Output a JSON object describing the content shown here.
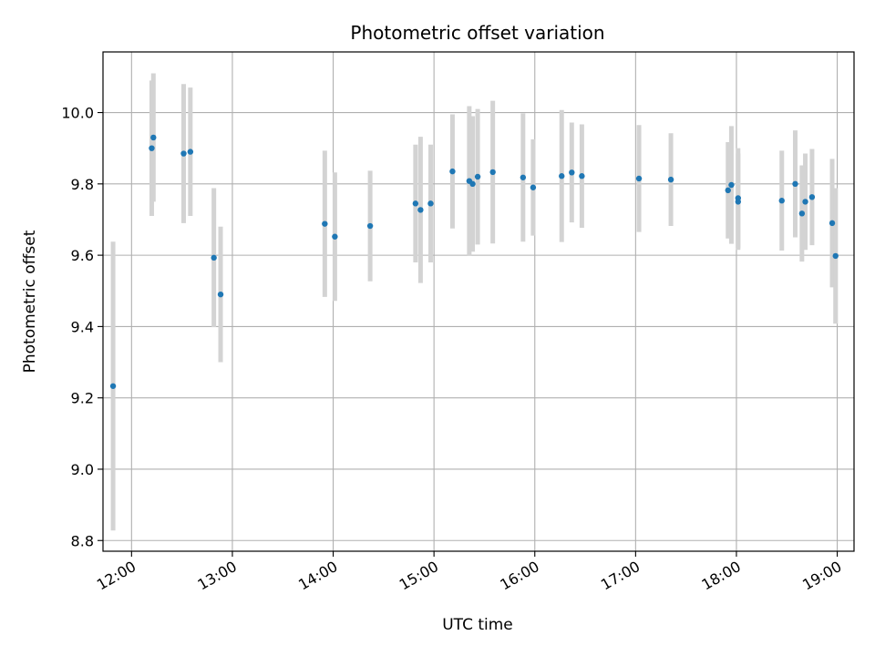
{
  "chart_data": {
    "type": "scatter",
    "title": "Photometric offset variation",
    "xlabel": "UTC time",
    "ylabel": "Photometric offset",
    "xlim": [
      "11:43",
      "19:10"
    ],
    "ylim": [
      8.77,
      10.17
    ],
    "grid": true,
    "x_ticks": [
      "12:00",
      "13:00",
      "14:00",
      "15:00",
      "16:00",
      "17:00",
      "18:00",
      "19:00"
    ],
    "y_ticks": [
      "8.8",
      "9.0",
      "9.2",
      "9.4",
      "9.6",
      "9.8",
      "10.0"
    ],
    "colors": {
      "point": "#1f77b4",
      "errorbar": "#d3d3d3",
      "grid": "#b0b0b0"
    },
    "series": [
      {
        "points": [
          {
            "x": "11:49",
            "y": 9.233,
            "err": 0.405
          },
          {
            "x": "12:12",
            "y": 9.9,
            "err": 0.19
          },
          {
            "x": "12:13",
            "y": 9.93,
            "err": 0.18
          },
          {
            "x": "12:31",
            "y": 9.885,
            "err": 0.195
          },
          {
            "x": "12:35",
            "y": 9.89,
            "err": 0.18
          },
          {
            "x": "12:49",
            "y": 9.593,
            "err": 0.195
          },
          {
            "x": "12:53",
            "y": 9.49,
            "err": 0.19
          },
          {
            "x": "13:55",
            "y": 9.688,
            "err": 0.205
          },
          {
            "x": "14:01",
            "y": 9.652,
            "err": 0.18
          },
          {
            "x": "14:22",
            "y": 9.682,
            "err": 0.155
          },
          {
            "x": "14:49",
            "y": 9.745,
            "err": 0.165
          },
          {
            "x": "14:52",
            "y": 9.727,
            "err": 0.205
          },
          {
            "x": "14:58",
            "y": 9.745,
            "err": 0.165
          },
          {
            "x": "15:11",
            "y": 9.835,
            "err": 0.16
          },
          {
            "x": "15:21",
            "y": 9.808,
            "err": 0.21
          },
          {
            "x": "15:23",
            "y": 9.8,
            "err": 0.19
          },
          {
            "x": "15:26",
            "y": 9.82,
            "err": 0.19
          },
          {
            "x": "15:35",
            "y": 9.833,
            "err": 0.2
          },
          {
            "x": "15:53",
            "y": 9.818,
            "err": 0.18
          },
          {
            "x": "15:59",
            "y": 9.79,
            "err": 0.135
          },
          {
            "x": "16:16",
            "y": 9.822,
            "err": 0.185
          },
          {
            "x": "16:22",
            "y": 9.832,
            "err": 0.14
          },
          {
            "x": "16:28",
            "y": 9.822,
            "err": 0.145
          },
          {
            "x": "17:02",
            "y": 9.815,
            "err": 0.15
          },
          {
            "x": "17:21",
            "y": 9.812,
            "err": 0.13
          },
          {
            "x": "17:55",
            "y": 9.782,
            "err": 0.135
          },
          {
            "x": "17:57",
            "y": 9.797,
            "err": 0.165
          },
          {
            "x": "18:01",
            "y": 9.76,
            "err": 0.14
          },
          {
            "x": "18:01",
            "y": 9.75,
            "err": 0.135
          },
          {
            "x": "18:27",
            "y": 9.753,
            "err": 0.14
          },
          {
            "x": "18:35",
            "y": 9.8,
            "err": 0.15
          },
          {
            "x": "18:39",
            "y": 9.717,
            "err": 0.135
          },
          {
            "x": "18:41",
            "y": 9.75,
            "err": 0.135
          },
          {
            "x": "18:45",
            "y": 9.763,
            "err": 0.135
          },
          {
            "x": "18:57",
            "y": 9.69,
            "err": 0.18
          },
          {
            "x": "18:59",
            "y": 9.598,
            "err": 0.19
          }
        ]
      }
    ]
  }
}
